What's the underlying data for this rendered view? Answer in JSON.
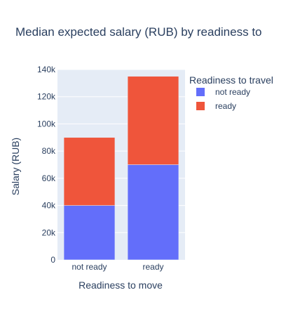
{
  "chart_data": {
    "type": "bar",
    "barmode": "stack",
    "title": "Median expected salary (RUB) by readiness to",
    "xlabel": "Readiness to move",
    "ylabel": "Salary (RUB)",
    "categories": [
      "not ready",
      "ready"
    ],
    "ylim": [
      0,
      140000
    ],
    "yticks": [
      0,
      20000,
      40000,
      60000,
      80000,
      100000,
      120000,
      140000
    ],
    "ytick_labels": [
      "0",
      "20k",
      "40k",
      "60k",
      "80k",
      "100k",
      "120k",
      "140k"
    ],
    "legend_title": "Readiness to travel",
    "legend_position": "top-right",
    "grid": true,
    "series": [
      {
        "name": "not ready",
        "color": "#636efa",
        "values": [
          40000,
          70000
        ]
      },
      {
        "name": "ready",
        "color": "#ef553b",
        "values": [
          50000,
          65000
        ]
      }
    ]
  },
  "colors": {
    "plot_bg": "#e5ecf6",
    "grid": "#ffffff",
    "text": "#2a3f5f"
  }
}
